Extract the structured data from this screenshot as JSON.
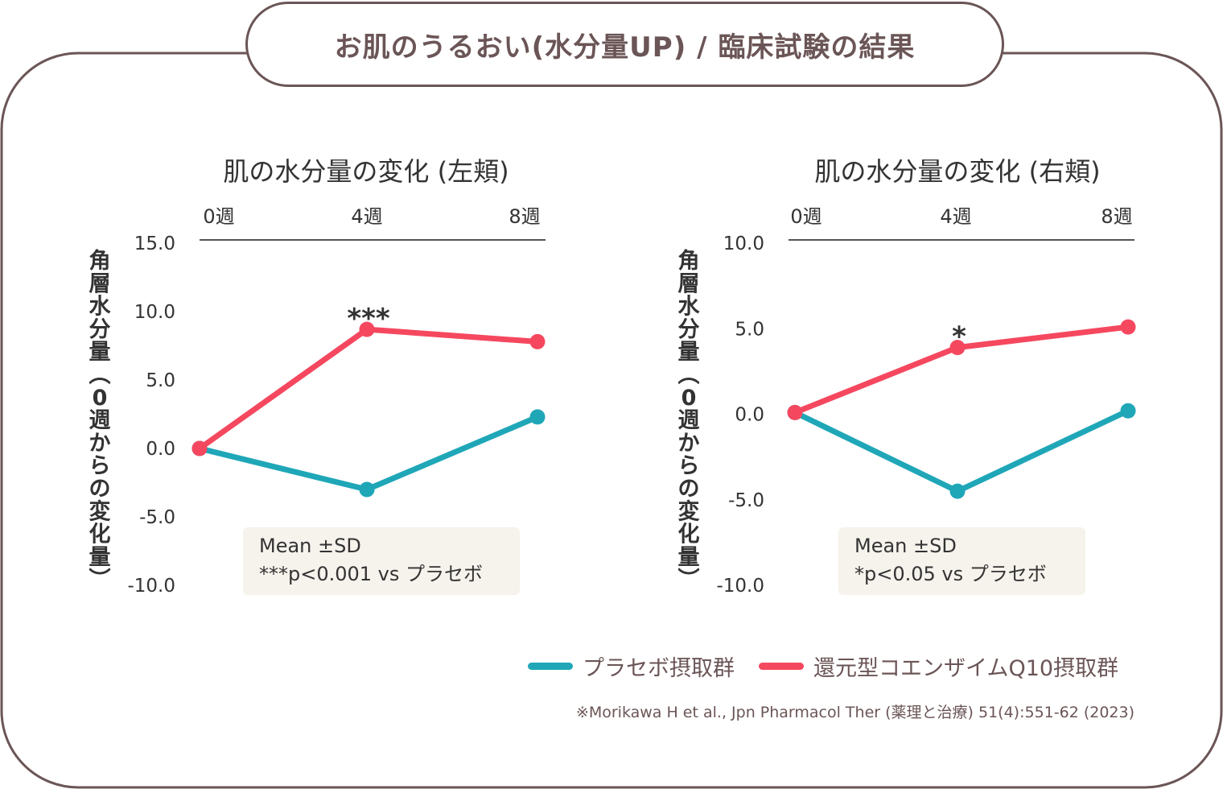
{
  "page_title": "お肌のうるおい(水分量UP) / 臨床試験の結果",
  "colors": {
    "frame": "#6b5556",
    "placebo": "#1fa7b8",
    "coq10": "#f5485f",
    "note_bg": "#f6f2ec",
    "axis": "#555555"
  },
  "legend": {
    "placebo": "プラセボ摂取群",
    "coq10": "還元型コエンザイムQ10摂取群"
  },
  "source": "※Morikawa H et al., Jpn Pharmacol Ther (薬理と治療) 51(4):551-62 (2023)",
  "chart_data": [
    {
      "type": "line",
      "title": "肌の水分量の変化 (左頬)",
      "ylabel": "角層水分量 (0週からの変化量)",
      "x": [
        "0週",
        "4週",
        "8週"
      ],
      "ylim": [
        -10,
        15
      ],
      "yticks": [
        "15.0",
        "10.0",
        "5.0",
        "0.0",
        "-5.0",
        "-10.0"
      ],
      "series": [
        {
          "name": "プラセボ摂取群",
          "values": [
            0.0,
            -3.0,
            2.3
          ]
        },
        {
          "name": "還元型コエンザイムQ10摂取群",
          "values": [
            0.0,
            8.7,
            7.8
          ]
        }
      ],
      "significance": {
        "x": "4週",
        "label": "***"
      },
      "note_lines": [
        "Mean ±SD",
        "***p<0.001 vs プラセボ"
      ]
    },
    {
      "type": "line",
      "title": "肌の水分量の変化 (右頬)",
      "ylabel": "角層水分量 (0週からの変化量)",
      "x": [
        "0週",
        "4週",
        "8週"
      ],
      "ylim": [
        -10,
        10
      ],
      "yticks": [
        "10.0",
        "5.0",
        "0.0",
        "-5.0",
        "-10.0"
      ],
      "series": [
        {
          "name": "プラセボ摂取群",
          "values": [
            0.1,
            -4.5,
            0.2
          ]
        },
        {
          "name": "還元型コエンザイムQ10摂取群",
          "values": [
            0.1,
            3.9,
            5.1
          ]
        }
      ],
      "significance": {
        "x": "4週",
        "label": "*"
      },
      "note_lines": [
        "Mean ±SD",
        "*p<0.05 vs プラセボ"
      ]
    }
  ]
}
